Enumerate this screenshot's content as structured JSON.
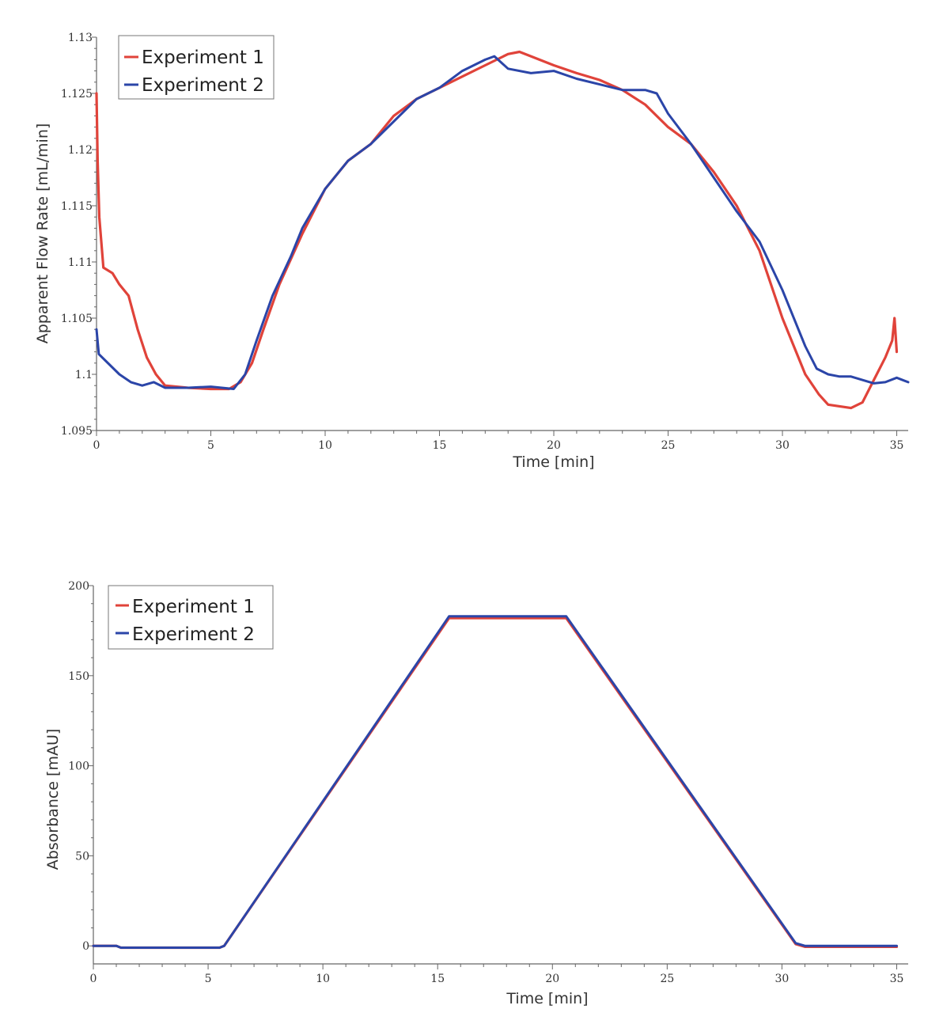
{
  "colors": {
    "experiment_1": "#e0433a",
    "experiment_2": "#2b45a8"
  },
  "chart_data": [
    {
      "type": "line",
      "id": "flow-rate",
      "xlabel": "Time [min]",
      "ylabel": "Apparent Flow Rate  [mL/min]",
      "xlim": [
        0,
        35.5
      ],
      "ylim": [
        1.095,
        1.13
      ],
      "x_ticks": [
        0,
        5,
        10,
        15,
        20,
        25,
        30,
        35
      ],
      "x_tick_labels": [
        "0",
        "5",
        "10",
        "15",
        "20",
        "25",
        "30",
        "35"
      ],
      "y_ticks": [
        1.095,
        1.1,
        1.105,
        1.11,
        1.115,
        1.12,
        1.125,
        1.13
      ],
      "y_tick_labels": [
        "1.095",
        "1.1",
        "1.105",
        "1.11",
        "1.115",
        "1.12",
        "1.125",
        "1.13"
      ],
      "legend": [
        "Experiment 1",
        "Experiment 2"
      ],
      "series": [
        {
          "name": "Experiment 1",
          "color": "#e0433a",
          "points": [
            [
              0,
              1.125
            ],
            [
              0.05,
              1.119
            ],
            [
              0.12,
              1.114
            ],
            [
              0.3,
              1.1095
            ],
            [
              0.7,
              1.109
            ],
            [
              1.0,
              1.108
            ],
            [
              1.4,
              1.107
            ],
            [
              1.8,
              1.104
            ],
            [
              2.2,
              1.1015
            ],
            [
              2.6,
              1.1
            ],
            [
              3.0,
              1.099
            ],
            [
              4.0,
              1.0988
            ],
            [
              5.0,
              1.0987
            ],
            [
              5.8,
              1.0987
            ],
            [
              6.3,
              1.0993
            ],
            [
              6.8,
              1.101
            ],
            [
              7.3,
              1.104
            ],
            [
              8.0,
              1.108
            ],
            [
              9.0,
              1.1125
            ],
            [
              10.0,
              1.1165
            ],
            [
              11.0,
              1.119
            ],
            [
              12.0,
              1.1205
            ],
            [
              13.0,
              1.123
            ],
            [
              14.0,
              1.1245
            ],
            [
              15.0,
              1.1255
            ],
            [
              16.0,
              1.1265
            ],
            [
              17.0,
              1.1275
            ],
            [
              18.0,
              1.1285
            ],
            [
              18.5,
              1.1287
            ],
            [
              19.0,
              1.1283
            ],
            [
              20.0,
              1.1275
            ],
            [
              21.0,
              1.1268
            ],
            [
              22.0,
              1.1262
            ],
            [
              23.0,
              1.1253
            ],
            [
              24.0,
              1.124
            ],
            [
              25.0,
              1.122
            ],
            [
              26.0,
              1.1205
            ],
            [
              27.0,
              1.118
            ],
            [
              28.0,
              1.115
            ],
            [
              29.0,
              1.111
            ],
            [
              30.0,
              1.105
            ],
            [
              31.0,
              1.1
            ],
            [
              31.6,
              1.0982
            ],
            [
              32.0,
              1.0973
            ],
            [
              33.0,
              1.097
            ],
            [
              33.5,
              1.0975
            ],
            [
              34.0,
              1.0995
            ],
            [
              34.5,
              1.1015
            ],
            [
              34.8,
              1.103
            ],
            [
              34.9,
              1.105
            ],
            [
              35.0,
              1.102
            ]
          ]
        },
        {
          "name": "Experiment 2",
          "color": "#2b45a8",
          "points": [
            [
              0,
              1.104
            ],
            [
              0.1,
              1.1018
            ],
            [
              0.4,
              1.1012
            ],
            [
              1.0,
              1.1
            ],
            [
              1.5,
              1.0993
            ],
            [
              2.0,
              1.099
            ],
            [
              2.5,
              1.0993
            ],
            [
              3.0,
              1.0988
            ],
            [
              4.0,
              1.0988
            ],
            [
              5.0,
              1.0989
            ],
            [
              6.0,
              1.0987
            ],
            [
              6.5,
              1.1
            ],
            [
              7.0,
              1.103
            ],
            [
              7.7,
              1.107
            ],
            [
              8.5,
              1.1105
            ],
            [
              9.0,
              1.113
            ],
            [
              10.0,
              1.1165
            ],
            [
              11.0,
              1.119
            ],
            [
              12.0,
              1.1205
            ],
            [
              13.0,
              1.1225
            ],
            [
              14.0,
              1.1245
            ],
            [
              15.0,
              1.1255
            ],
            [
              16.0,
              1.127
            ],
            [
              17.0,
              1.128
            ],
            [
              17.4,
              1.1283
            ],
            [
              18.0,
              1.1272
            ],
            [
              19.0,
              1.1268
            ],
            [
              20.0,
              1.127
            ],
            [
              21.0,
              1.1263
            ],
            [
              22.0,
              1.1258
            ],
            [
              23.0,
              1.1253
            ],
            [
              24.0,
              1.1253
            ],
            [
              24.5,
              1.125
            ],
            [
              25.0,
              1.1232
            ],
            [
              26.0,
              1.1205
            ],
            [
              27.0,
              1.1175
            ],
            [
              28.0,
              1.1145
            ],
            [
              29.0,
              1.1118
            ],
            [
              30.0,
              1.1075
            ],
            [
              31.0,
              1.1025
            ],
            [
              31.5,
              1.1005
            ],
            [
              32.0,
              1.1
            ],
            [
              32.5,
              1.0998
            ],
            [
              33.0,
              1.0998
            ],
            [
              34.0,
              1.0992
            ],
            [
              34.5,
              1.0993
            ],
            [
              35.0,
              1.0997
            ],
            [
              35.5,
              1.0993
            ]
          ]
        }
      ]
    },
    {
      "type": "line",
      "id": "absorbance",
      "xlabel": "Time [min]",
      "ylabel": "Absorbance [mAU]",
      "xlim": [
        0,
        35.5
      ],
      "ylim": [
        -10,
        200
      ],
      "x_ticks": [
        0,
        5,
        10,
        15,
        20,
        25,
        30,
        35
      ],
      "x_tick_labels": [
        "0",
        "5",
        "10",
        "15",
        "20",
        "25",
        "30",
        "35"
      ],
      "y_ticks": [
        0,
        50,
        100,
        150,
        200
      ],
      "y_tick_labels": [
        "0",
        "50",
        "100",
        "150",
        "200"
      ],
      "legend": [
        "Experiment 1",
        "Experiment 2"
      ],
      "series": [
        {
          "name": "Experiment 1",
          "color": "#e0433a",
          "points": [
            [
              0,
              0
            ],
            [
              1.0,
              0
            ],
            [
              1.2,
              -1
            ],
            [
              5.5,
              -1
            ],
            [
              5.7,
              0
            ],
            [
              15.5,
              182
            ],
            [
              20.6,
              182
            ],
            [
              30.6,
              1
            ],
            [
              31.0,
              -0.5
            ],
            [
              35,
              -0.5
            ]
          ]
        },
        {
          "name": "Experiment 2",
          "color": "#2b45a8",
          "points": [
            [
              0,
              0
            ],
            [
              1.0,
              0
            ],
            [
              1.2,
              -1
            ],
            [
              5.5,
              -1
            ],
            [
              5.7,
              0
            ],
            [
              15.5,
              183
            ],
            [
              20.6,
              183
            ],
            [
              30.6,
              1.5
            ],
            [
              31.0,
              0
            ],
            [
              35,
              0
            ]
          ]
        }
      ]
    }
  ]
}
